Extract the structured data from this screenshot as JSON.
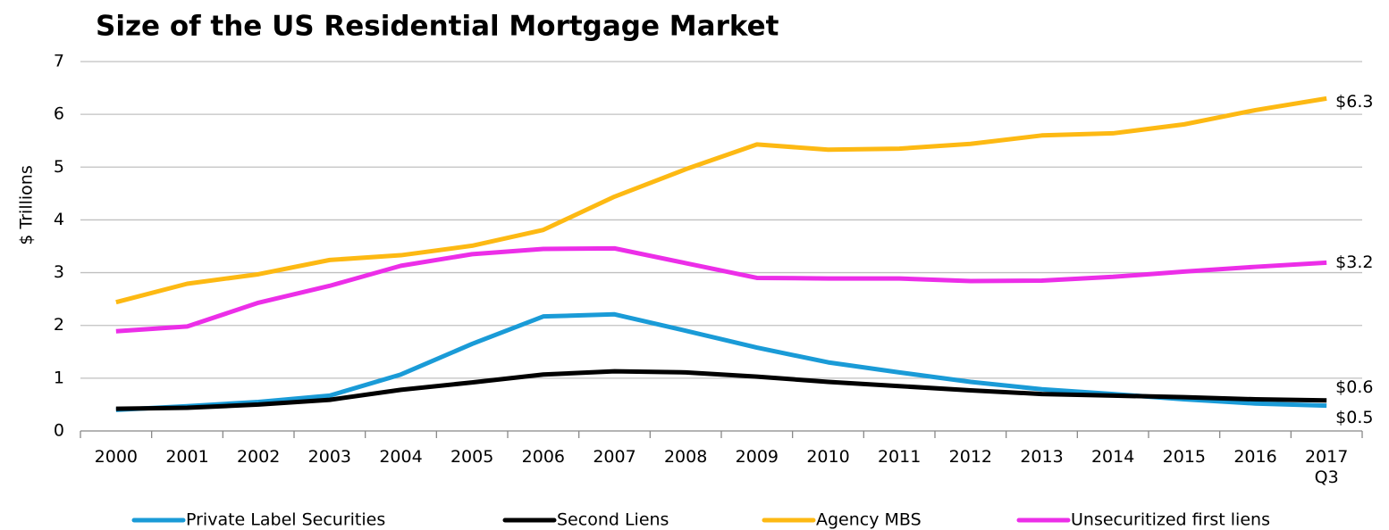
{
  "chart_data": {
    "type": "line",
    "title": "Size of the US Residential Mortgage Market",
    "y_label": "$ Trillions",
    "categories": [
      "2000",
      "2001",
      "2002",
      "2003",
      "2004",
      "2005",
      "2006",
      "2007",
      "2008",
      "2009",
      "2010",
      "2011",
      "2012",
      "2013",
      "2014",
      "2015",
      "2016",
      "2017 Q3"
    ],
    "series": [
      {
        "name": "Private Label Securities",
        "color": "#1a9bd7",
        "values": [
          0.4,
          0.47,
          0.55,
          0.67,
          1.07,
          1.65,
          2.17,
          2.21,
          1.9,
          1.58,
          1.3,
          1.11,
          0.93,
          0.79,
          0.7,
          0.6,
          0.52,
          0.48
        ],
        "value_labels": [
          null,
          null,
          null,
          null,
          null,
          null,
          null,
          null,
          null,
          null,
          null,
          null,
          null,
          null,
          null,
          null,
          null,
          "$0.5"
        ]
      },
      {
        "name": "Second Liens",
        "color": "#000000",
        "values": [
          0.42,
          0.44,
          0.5,
          0.59,
          0.78,
          0.92,
          1.07,
          1.13,
          1.11,
          1.03,
          0.93,
          0.85,
          0.77,
          0.7,
          0.67,
          0.64,
          0.6,
          0.58
        ],
        "value_labels": [
          null,
          null,
          null,
          null,
          null,
          null,
          null,
          null,
          null,
          null,
          null,
          null,
          null,
          null,
          null,
          null,
          null,
          "$0.6"
        ]
      },
      {
        "name": "Agency MBS",
        "color": "#fdb913",
        "values": [
          2.44,
          2.79,
          2.97,
          3.24,
          3.33,
          3.51,
          3.81,
          4.44,
          4.96,
          5.43,
          5.33,
          5.35,
          5.44,
          5.6,
          5.64,
          5.81,
          6.08,
          6.3
        ],
        "value_labels": [
          null,
          null,
          null,
          null,
          null,
          null,
          null,
          null,
          null,
          null,
          null,
          null,
          null,
          null,
          null,
          null,
          null,
          "$6.3"
        ]
      },
      {
        "name": "Unsecuritized first liens",
        "color": "#ec2ee8",
        "values": [
          1.89,
          1.98,
          2.43,
          2.75,
          3.13,
          3.35,
          3.45,
          3.46,
          3.18,
          2.9,
          2.89,
          2.89,
          2.84,
          2.85,
          2.92,
          3.02,
          3.11,
          3.19
        ],
        "value_labels": [
          null,
          null,
          null,
          null,
          null,
          null,
          null,
          null,
          null,
          null,
          null,
          null,
          null,
          null,
          null,
          null,
          null,
          "$3.2"
        ]
      }
    ],
    "ylim": [
      0,
      7
    ],
    "yticks": [
      0,
      1,
      2,
      3,
      4,
      5,
      6,
      7
    ],
    "grid": true,
    "legend": "bottom"
  }
}
